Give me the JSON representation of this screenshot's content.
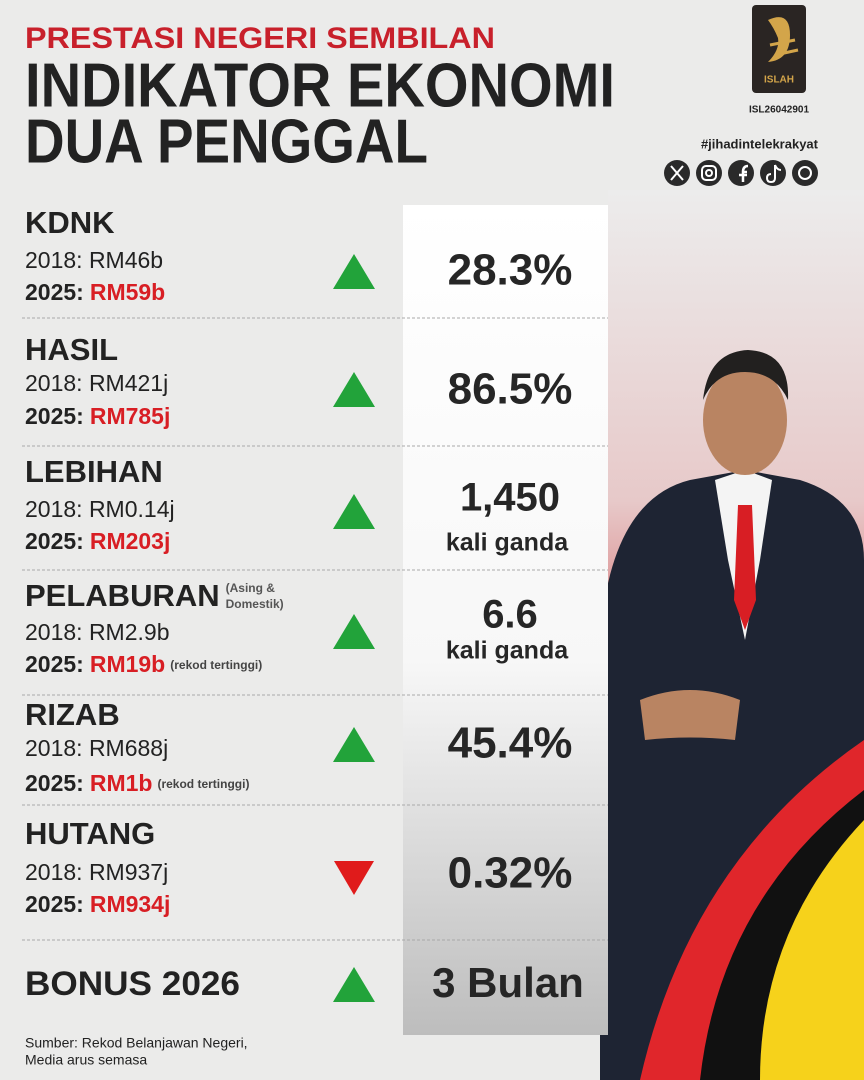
{
  "header": {
    "kicker": "PRESTASI NEGERI SEMBILAN",
    "title_lines": [
      "INDIKATOR EKONOMI",
      "DUA PENGGAL"
    ]
  },
  "brand": {
    "logo_text": "ISLAH",
    "code": "ISL26042901",
    "hashtag": "#jihadintelekrakyat"
  },
  "indicators": [
    {
      "label": "KDNK",
      "line_2018": "2018: RM46b",
      "year_2025": "2025:",
      "value_2025": "RM59b",
      "trend": "up",
      "change": "28.3%"
    },
    {
      "label": "HASIL",
      "line_2018": "2018: RM421j",
      "year_2025": "2025:",
      "value_2025": "RM785j",
      "trend": "up",
      "change": "86.5%"
    },
    {
      "label": "LEBIHAN",
      "line_2018": "2018: RM0.14j",
      "year_2025": "2025:",
      "value_2025": "RM203j",
      "trend": "up",
      "change": "1,450",
      "change_unit": "kali ganda"
    },
    {
      "label": "PELABURAN",
      "label_note": [
        "(Asing &",
        "Domestik)"
      ],
      "line_2018": "2018: RM2.9b",
      "year_2025": "2025:",
      "value_2025": "RM19b",
      "note": "(rekod tertinggi)",
      "trend": "up",
      "change": "6.6",
      "change_unit": "kali ganda"
    },
    {
      "label": "RIZAB",
      "line_2018": "2018: RM688j",
      "year_2025": "2025:",
      "value_2025": "RM1b",
      "note": "(rekod tertinggi)",
      "trend": "up",
      "change": "45.4%"
    },
    {
      "label": "HUTANG",
      "line_2018": "2018: RM937j",
      "year_2025": "2025:",
      "value_2025": "RM934j",
      "trend": "down",
      "change": "0.32%"
    }
  ],
  "bonus": {
    "label": "BONUS 2026",
    "trend": "up",
    "value": "3 Bulan"
  },
  "source": [
    "Sumber: Rekod Belanjawan Negeri,",
    "Media arus semasa"
  ]
}
